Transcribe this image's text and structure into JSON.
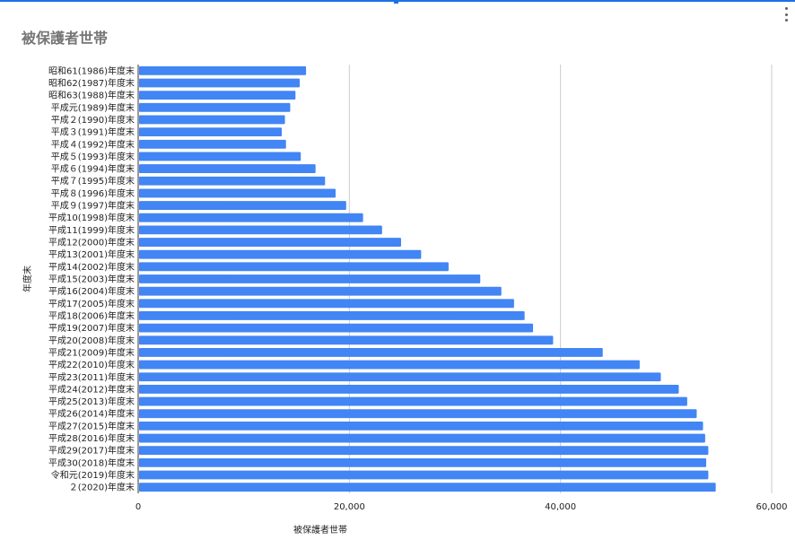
{
  "title": "被保護者世帯",
  "menu": {
    "icon": "more-vert-icon"
  },
  "colors": {
    "bar": "#4285f4",
    "grid": "#cccccc",
    "accent": "#1a73e8",
    "title": "#757575"
  },
  "chart_data": {
    "type": "bar",
    "orientation": "horizontal",
    "xlabel": "被保護者世帯",
    "ylabel": "年度末",
    "xlim": [
      0,
      60000
    ],
    "x_ticks": [
      "0",
      "20,000",
      "40,000",
      "60,000"
    ],
    "x_tick_values": [
      0,
      20000,
      40000,
      60000
    ],
    "grid": true,
    "legend": "none",
    "categories": [
      "昭和61(1986)年度末",
      "昭和62(1987)年度末",
      "昭和63(1988)年度末",
      "平成元(1989)年度末",
      "平成２(1990)年度末",
      "平成３(1991)年度末",
      "平成４(1992)年度末",
      "平成５(1993)年度末",
      "平成６(1994)年度末",
      "平成７(1995)年度末",
      "平成８(1996)年度末",
      "平成９(1997)年度末",
      "平成10(1998)年度末",
      "平成11(1999)年度末",
      "平成12(2000)年度末",
      "平成13(2001)年度末",
      "平成14(2002)年度末",
      "平成15(2003)年度末",
      "平成16(2004)年度末",
      "平成17(2005)年度末",
      "平成18(2006)年度末",
      "平成19(2007)年度末",
      "平成20(2008)年度末",
      "平成21(2009)年度末",
      "平成22(2010)年度末",
      "平成23(2011)年度末",
      "平成24(2012)年度末",
      "平成25(2013)年度末",
      "平成26(2014)年度末",
      "平成27(2015)年度末",
      "平成28(2016)年度末",
      "平成29(2017)年度末",
      "平成30(2018)年度末",
      "令和元(2019)年度末",
      "２(2020)年度末"
    ],
    "values": [
      15900,
      15300,
      14900,
      14400,
      13900,
      13600,
      14000,
      15400,
      16800,
      17700,
      18700,
      19700,
      21300,
      23100,
      24900,
      26800,
      29400,
      32400,
      34400,
      35600,
      36600,
      37400,
      39300,
      44000,
      47500,
      49500,
      51200,
      52000,
      52900,
      53500,
      53700,
      54000,
      53800,
      54000,
      54700
    ]
  }
}
